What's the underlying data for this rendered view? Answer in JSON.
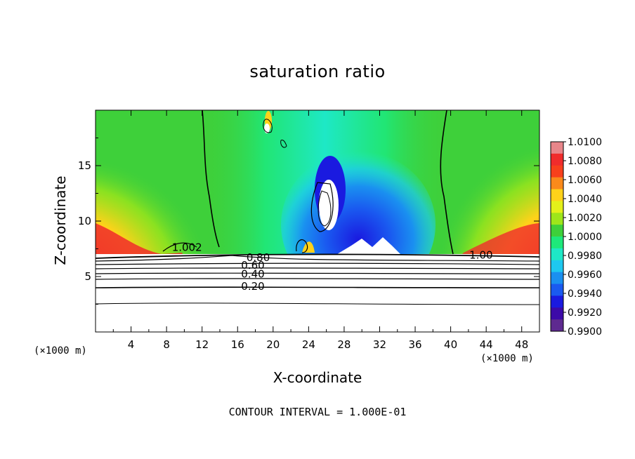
{
  "chart_data": {
    "type": "heatmap",
    "title": "saturation ratio",
    "xlabel": "X-coordinate",
    "ylabel": "Z-coordinate",
    "x_unit_label": "(×1000 m)",
    "footer": "CONTOUR INTERVAL = 1.000E-01",
    "xlim": [
      0,
      50
    ],
    "ylim": [
      0,
      20
    ],
    "x_ticks": [
      4,
      8,
      12,
      16,
      20,
      24,
      28,
      32,
      36,
      40,
      44,
      48
    ],
    "y_ticks": [
      5,
      10,
      15
    ],
    "colorbar": {
      "min": 0.99,
      "max": 1.01,
      "labels": [
        "1.0100",
        "1.0080",
        "1.0060",
        "1.0040",
        "1.0020",
        "1.0000",
        "0.9980",
        "0.9960",
        "0.9940",
        "0.9920",
        "0.9900"
      ],
      "colors": [
        "#e8868a",
        "#f02c2c",
        "#f8401c",
        "#fb8a1b",
        "#ffd21a",
        "#e4f01a",
        "#9ee61a",
        "#3ed03a",
        "#1ee87a",
        "#1ee8c6",
        "#1ec8f0",
        "#1a90f0",
        "#1a5af0",
        "#1a1ae0",
        "#3c0aa8",
        "#5e2a90"
      ]
    },
    "contour_labels": [
      {
        "text": "1.00",
        "x": 42.1,
        "y": 6.6
      },
      {
        "text": "1.002",
        "x": 8.6,
        "y": 7.3
      },
      {
        "text": "0.80",
        "x": 17.0,
        "y": 6.4
      },
      {
        "text": "0.60",
        "x": 16.4,
        "y": 5.7
      },
      {
        "text": "0.40",
        "x": 16.4,
        "y": 4.9
      },
      {
        "text": "0.20",
        "x": 16.4,
        "y": 3.8
      }
    ]
  }
}
